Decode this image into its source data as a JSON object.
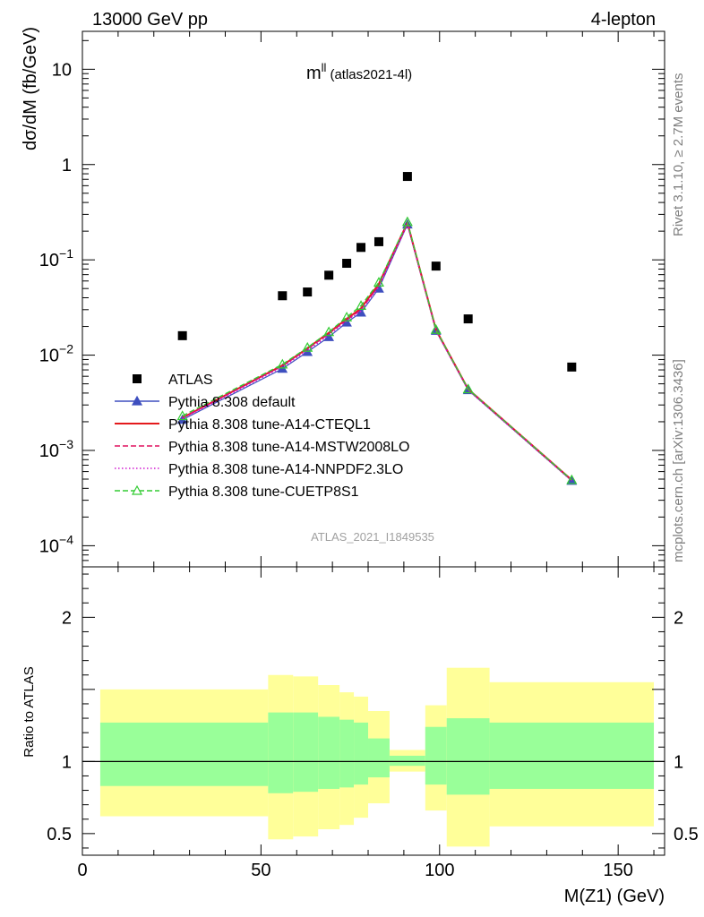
{
  "header": {
    "left": "13000 GeV pp",
    "right": "4-lepton"
  },
  "plot_title": {
    "main": "m",
    "sup": "ll",
    "sub": "(atlas2021-4l)"
  },
  "side_labels": {
    "rivet": "Rivet 3.1.10, ≥ 2.7M events",
    "mcplots": "mcplots.cern.ch [arXiv:1306.3436]"
  },
  "watermark": "ATLAS_2021_I1849535",
  "legend": [
    {
      "label": "ATLAS",
      "color": "#000000",
      "style": "square"
    },
    {
      "label": "Pythia 8.308 default",
      "color": "#3e4fbf",
      "style": "line-triangle"
    },
    {
      "label": "Pythia 8.308 tune-A14-CTEQL1",
      "color": "#e41a1c",
      "style": "solid"
    },
    {
      "label": "Pythia 8.308 tune-A14-MSTW2008LO",
      "color": "#e0115f",
      "style": "dashed"
    },
    {
      "label": "Pythia 8.308 tune-A14-NNPDF2.3LO",
      "color": "#d11bd1",
      "style": "dotted"
    },
    {
      "label": "Pythia 8.308 tune-CUETP8S1",
      "color": "#33cc33",
      "style": "dashed-triangle-open"
    }
  ],
  "chart_data": [
    {
      "type": "scatter",
      "panel": "main",
      "ylabel": "dσ/dM (fb/GeV)",
      "yscale": "log",
      "xlim": [
        0,
        163
      ],
      "ylim": [
        6e-05,
        25
      ],
      "yticks": [
        {
          "value": 0.0001,
          "base": "10",
          "exp": "−4"
        },
        {
          "value": 0.001,
          "base": "10",
          "exp": "−3"
        },
        {
          "value": 0.01,
          "base": "10",
          "exp": "−2"
        },
        {
          "value": 0.1,
          "base": "10",
          "exp": "−1"
        },
        {
          "value": 1,
          "base": "1",
          "exp": ""
        },
        {
          "value": 10,
          "base": "10",
          "exp": ""
        }
      ],
      "data_points": {
        "name": "ATLAS",
        "x": [
          28,
          56,
          63,
          69,
          74,
          78,
          83,
          91,
          99,
          108,
          137
        ],
        "y": [
          0.016,
          0.042,
          0.046,
          0.069,
          0.092,
          0.135,
          0.155,
          0.75,
          0.086,
          0.024,
          0.0075
        ]
      },
      "mc_x": [
        28,
        56,
        63,
        69,
        74,
        78,
        83,
        91,
        99,
        108,
        137
      ],
      "series": [
        {
          "name": "Pythia 8.308 default",
          "color": "#3e4fbf",
          "y": [
            0.0021,
            0.0072,
            0.0108,
            0.0155,
            0.022,
            0.028,
            0.05,
            0.235,
            0.018,
            0.0043,
            0.00048
          ]
        },
        {
          "name": "Pythia 8.308 tune-A14-CTEQL1",
          "color": "#e41a1c",
          "y": [
            0.0022,
            0.0078,
            0.0118,
            0.0172,
            0.024,
            0.031,
            0.056,
            0.245,
            0.0185,
            0.0044,
            0.00049
          ]
        },
        {
          "name": "Pythia 8.308 tune-A14-MSTW2008LO",
          "color": "#e0115f",
          "y": [
            0.0022,
            0.0077,
            0.0116,
            0.0168,
            0.0235,
            0.03,
            0.054,
            0.24,
            0.0182,
            0.0044,
            0.00049
          ]
        },
        {
          "name": "Pythia 8.308 tune-A14-NNPDF2.3LO",
          "color": "#d11bd1",
          "y": [
            0.00215,
            0.0075,
            0.0112,
            0.0162,
            0.023,
            0.029,
            0.052,
            0.238,
            0.018,
            0.0043,
            0.00048
          ]
        },
        {
          "name": "Pythia 8.308 tune-CUETP8S1",
          "color": "#33cc33",
          "y": [
            0.0023,
            0.008,
            0.012,
            0.0175,
            0.025,
            0.033,
            0.058,
            0.25,
            0.0185,
            0.0044,
            0.00049
          ]
        }
      ]
    },
    {
      "type": "area",
      "panel": "ratio",
      "ylabel": "Ratio to ATLAS",
      "xlabel": "M(Z1) (GeV)",
      "xlim": [
        0,
        163
      ],
      "ylim": [
        0.35,
        2.35
      ],
      "yticks": [
        0.5,
        1,
        2
      ],
      "xticks": [
        0,
        50,
        100,
        150
      ],
      "bands": [
        {
          "x": [
            5,
            52
          ],
          "stat": [
            0.83,
            1.27
          ],
          "total": [
            0.62,
            1.5
          ]
        },
        {
          "x": [
            52,
            59
          ],
          "stat": [
            0.78,
            1.34
          ],
          "total": [
            0.46,
            1.6
          ]
        },
        {
          "x": [
            59,
            66
          ],
          "stat": [
            0.79,
            1.34
          ],
          "total": [
            0.48,
            1.59
          ]
        },
        {
          "x": [
            66,
            72
          ],
          "stat": [
            0.81,
            1.31
          ],
          "total": [
            0.53,
            1.53
          ]
        },
        {
          "x": [
            72,
            76
          ],
          "stat": [
            0.82,
            1.29
          ],
          "total": [
            0.56,
            1.48
          ]
        },
        {
          "x": [
            76,
            80
          ],
          "stat": [
            0.84,
            1.27
          ],
          "total": [
            0.61,
            1.45
          ]
        },
        {
          "x": [
            80,
            86
          ],
          "stat": [
            0.89,
            1.16
          ],
          "total": [
            0.71,
            1.35
          ]
        },
        {
          "x": [
            86,
            96
          ],
          "stat": [
            0.97,
            1.04
          ],
          "total": [
            0.93,
            1.08
          ]
        },
        {
          "x": [
            96,
            102
          ],
          "stat": [
            0.84,
            1.24
          ],
          "total": [
            0.66,
            1.39
          ]
        },
        {
          "x": [
            102,
            114
          ],
          "stat": [
            0.77,
            1.3
          ],
          "total": [
            0.41,
            1.65
          ]
        },
        {
          "x": [
            114,
            160
          ],
          "stat": [
            0.81,
            1.27
          ],
          "total": [
            0.55,
            1.55
          ]
        }
      ]
    }
  ]
}
